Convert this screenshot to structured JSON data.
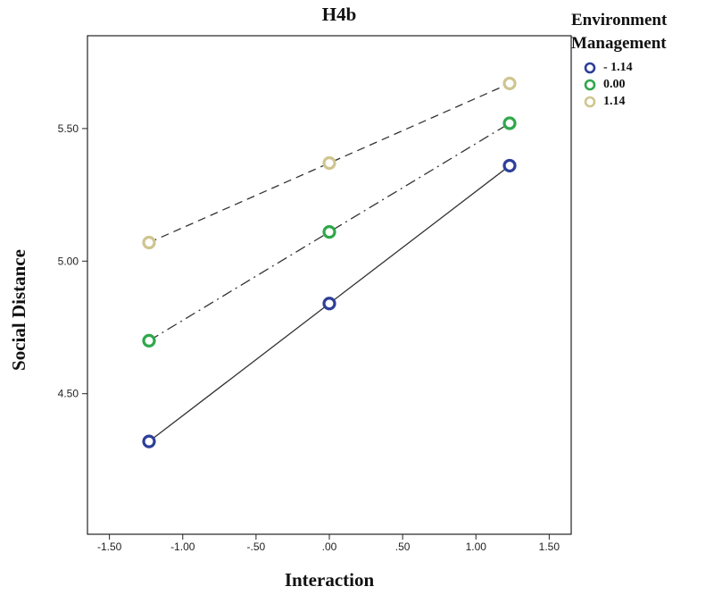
{
  "chart_data": {
    "type": "line",
    "title": "H4b",
    "xlabel": "Interaction",
    "ylabel": "Social Distance",
    "xlim": [
      -1.65,
      1.65
    ],
    "ylim": [
      3.97,
      5.85
    ],
    "xticks": [
      -1.5,
      -1.0,
      -0.5,
      0.0,
      0.5,
      1.0,
      1.5
    ],
    "xtick_labels": [
      "-1.50",
      "-1.00",
      "-.50",
      ".00",
      ".50",
      "1.00",
      "1.50"
    ],
    "yticks": [
      4.5,
      5.0,
      5.5
    ],
    "ytick_labels": [
      "4.50",
      "5.00",
      "5.50"
    ],
    "grid": false,
    "legend": {
      "title": "Environment Management",
      "position": "right"
    },
    "x": [
      -1.23,
      0.0,
      1.23
    ],
    "series": [
      {
        "name": "- 1.14",
        "values": [
          4.32,
          4.84,
          5.36
        ],
        "color": "#2d3f9a",
        "line_style": "solid"
      },
      {
        "name": "0.00",
        "values": [
          4.7,
          5.11,
          5.52
        ],
        "color": "#2fa84a",
        "line_style": "dashdot"
      },
      {
        "name": "1.14",
        "values": [
          5.07,
          5.37,
          5.67
        ],
        "color": "#cfc58f",
        "line_style": "dashed"
      }
    ]
  }
}
